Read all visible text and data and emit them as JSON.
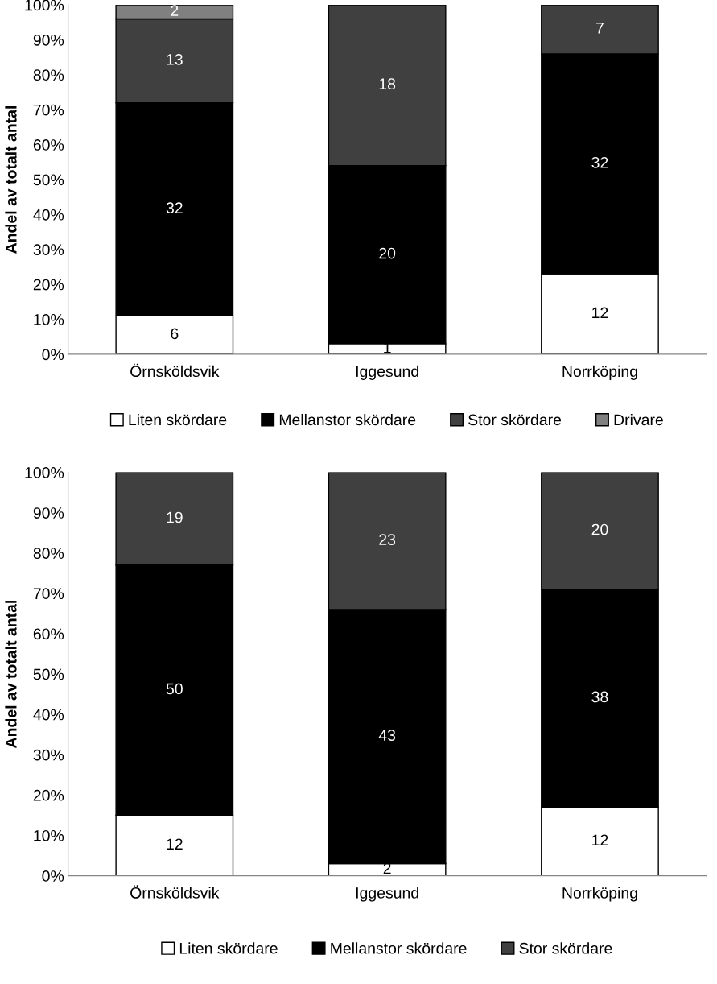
{
  "chart_data": [
    {
      "type": "bar",
      "stacked": true,
      "ylabel": "Andel av totalt antal",
      "categories": [
        "Örnsköldsvik",
        "Iggesund",
        "Norrköping"
      ],
      "ylim": [
        0,
        100
      ],
      "yticks": [
        {
          "value": 0,
          "label": "0%"
        },
        {
          "value": 10,
          "label": "10%"
        },
        {
          "value": 20,
          "label": "20%"
        },
        {
          "value": 30,
          "label": "30%"
        },
        {
          "value": 40,
          "label": "40%"
        },
        {
          "value": 50,
          "label": "50%"
        },
        {
          "value": 60,
          "label": "60%"
        },
        {
          "value": 70,
          "label": "70%"
        },
        {
          "value": 80,
          "label": "80%"
        },
        {
          "value": 90,
          "label": "90%"
        },
        {
          "value": 100,
          "label": "100%"
        }
      ],
      "legend": "bottom",
      "grid": false,
      "series": [
        {
          "name": "Liten skördare",
          "color": "#ffffff",
          "values": [
            11,
            3,
            23
          ]
        },
        {
          "name": "Mellanstor skördare",
          "color": "#000000",
          "values": [
            61,
            51,
            63
          ]
        },
        {
          "name": "Stor skördare",
          "color": "#404040",
          "values": [
            24,
            46,
            14
          ]
        },
        {
          "name": "Drivare",
          "color": "#808080",
          "values": [
            4,
            null,
            null
          ]
        }
      ],
      "annotations": [
        "6",
        "1",
        "12",
        "32",
        "20",
        "32",
        "13",
        "18",
        "7",
        "2"
      ]
    },
    {
      "type": "bar",
      "stacked": true,
      "ylabel": "Andel av totalt antal",
      "categories": [
        "Örnsköldsvik",
        "Iggesund",
        "Norrköping"
      ],
      "ylim": [
        0,
        100
      ],
      "yticks": [
        {
          "value": 0,
          "label": "0%"
        },
        {
          "value": 10,
          "label": "10%"
        },
        {
          "value": 20,
          "label": "20%"
        },
        {
          "value": 30,
          "label": "30%"
        },
        {
          "value": 40,
          "label": "40%"
        },
        {
          "value": 50,
          "label": "50%"
        },
        {
          "value": 60,
          "label": "60%"
        },
        {
          "value": 70,
          "label": "70%"
        },
        {
          "value": 80,
          "label": "80%"
        },
        {
          "value": 90,
          "label": "90%"
        },
        {
          "value": 100,
          "label": "100%"
        }
      ],
      "legend": "bottom",
      "grid": false,
      "series": [
        {
          "name": "Liten skördare",
          "color": "#ffffff",
          "values": [
            15,
            3,
            17
          ]
        },
        {
          "name": "Mellanstor skördare",
          "color": "#000000",
          "values": [
            62,
            63,
            54
          ]
        },
        {
          "name": "Stor skördare",
          "color": "#404040",
          "values": [
            23,
            34,
            29
          ]
        }
      ],
      "annotations": [
        "12",
        "2",
        "12",
        "50",
        "43",
        "38",
        "19",
        "23",
        "20"
      ]
    }
  ]
}
